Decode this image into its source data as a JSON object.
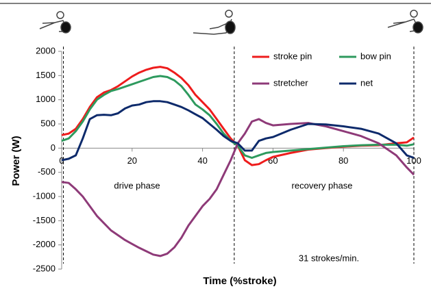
{
  "chart_data": {
    "type": "line",
    "x_label": "Time (%stroke)",
    "y_label": "Power (W)",
    "xlim": [
      0,
      100
    ],
    "xticks": [
      0,
      20,
      40,
      60,
      80,
      100
    ],
    "ylim": [
      -2500,
      2000
    ],
    "yticks": [
      -2500,
      -2000,
      -1500,
      -1000,
      -500,
      0,
      500,
      1000,
      1500,
      2000
    ],
    "x": [
      0,
      2,
      4,
      6,
      8,
      10,
      12,
      14,
      16,
      18,
      20,
      22,
      24,
      26,
      28,
      30,
      32,
      34,
      36,
      38,
      40,
      42,
      44,
      46,
      48,
      50,
      52,
      54,
      56,
      58,
      60,
      65,
      70,
      75,
      80,
      85,
      90,
      95,
      98,
      100
    ],
    "series": [
      {
        "name": "stroke pin",
        "color": "#ee1c1c",
        "values": [
          270,
          300,
          400,
          600,
          850,
          1050,
          1150,
          1200,
          1280,
          1380,
          1480,
          1560,
          1620,
          1660,
          1680,
          1650,
          1560,
          1450,
          1300,
          1100,
          950,
          800,
          600,
          400,
          200,
          50,
          -250,
          -350,
          -330,
          -250,
          -180,
          -100,
          -30,
          0,
          30,
          50,
          60,
          100,
          120,
          220
        ]
      },
      {
        "name": "bow pin",
        "color": "#2e9a5e",
        "values": [
          150,
          200,
          350,
          550,
          800,
          1000,
          1100,
          1180,
          1220,
          1270,
          1320,
          1370,
          1420,
          1470,
          1490,
          1470,
          1400,
          1280,
          1100,
          900,
          800,
          680,
          500,
          300,
          150,
          50,
          -150,
          -200,
          -150,
          -100,
          -80,
          -50,
          -20,
          10,
          40,
          60,
          70,
          70,
          50,
          80
        ]
      },
      {
        "name": "stretcher",
        "color": "#8e3a78",
        "values": [
          -700,
          -720,
          -850,
          -1000,
          -1200,
          -1400,
          -1550,
          -1700,
          -1800,
          -1900,
          -1980,
          -2060,
          -2130,
          -2200,
          -2230,
          -2180,
          -2050,
          -1850,
          -1600,
          -1400,
          -1200,
          -1050,
          -850,
          -550,
          -250,
          100,
          300,
          550,
          600,
          520,
          470,
          500,
          520,
          450,
          350,
          250,
          100,
          -150,
          -400,
          -550
        ]
      },
      {
        "name": "net",
        "color": "#0d2a6b",
        "values": [
          -250,
          -220,
          -150,
          200,
          600,
          680,
          690,
          680,
          720,
          820,
          880,
          900,
          950,
          970,
          970,
          950,
          900,
          850,
          780,
          700,
          620,
          500,
          380,
          250,
          150,
          100,
          -50,
          -50,
          150,
          200,
          230,
          380,
          500,
          490,
          450,
          400,
          300,
          100,
          -150,
          -200
        ]
      }
    ],
    "phase_markers": [
      0.5,
      49,
      100
    ],
    "annotations": [
      "drive phase",
      "recovery phase",
      "31 strokes/min."
    ]
  }
}
